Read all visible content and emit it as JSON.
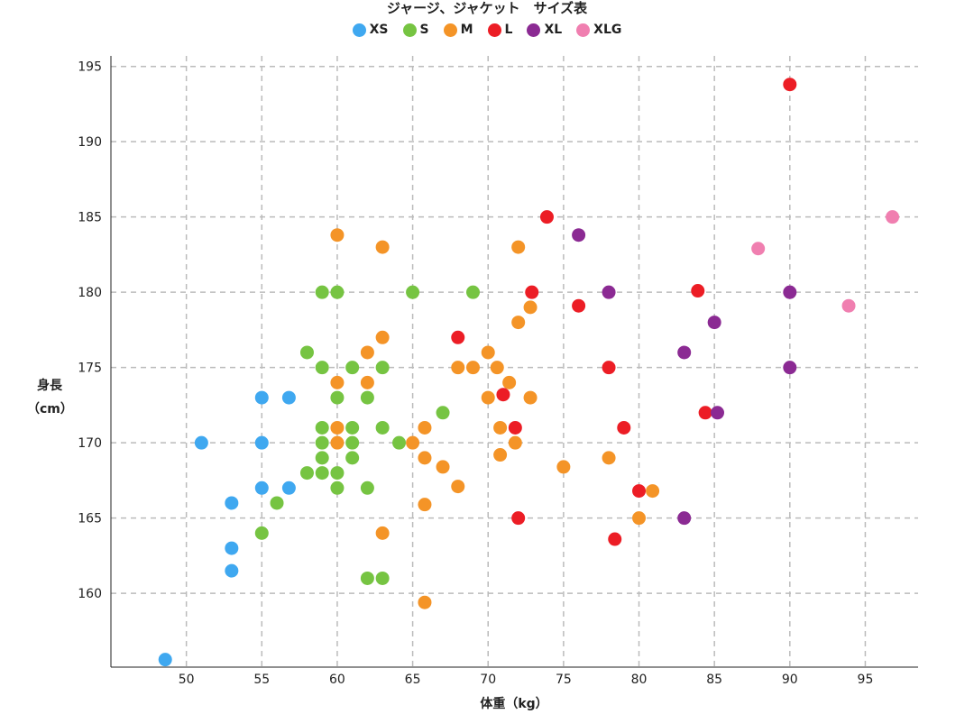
{
  "chart_data": {
    "type": "scatter",
    "title": "ジャージ、ジャケット　サイズ表",
    "xlabel": "体重（kg）",
    "ylabel": [
      "身長",
      "（cm）"
    ],
    "xlim": [
      45,
      98.5
    ],
    "ylim": [
      155.1,
      195.7
    ],
    "xticks": [
      50,
      55,
      60,
      65,
      70,
      75,
      80,
      85,
      90,
      95
    ],
    "yticks": [
      160,
      165,
      170,
      175,
      180,
      185,
      190,
      195
    ],
    "grid": true,
    "legend_position": "top-center",
    "series": [
      {
        "name": "XS",
        "color": "#3fa8f0",
        "points": [
          [
            48.6,
            155.6
          ],
          [
            51,
            170
          ],
          [
            53,
            166
          ],
          [
            53,
            163
          ],
          [
            53,
            161.5
          ],
          [
            55,
            173
          ],
          [
            55,
            170
          ],
          [
            55,
            167
          ],
          [
            56.8,
            173
          ],
          [
            56.8,
            167
          ]
        ]
      },
      {
        "name": "S",
        "color": "#76c442",
        "points": [
          [
            55,
            164
          ],
          [
            56,
            166
          ],
          [
            58,
            176
          ],
          [
            58,
            168
          ],
          [
            59,
            180
          ],
          [
            59,
            175
          ],
          [
            59,
            171
          ],
          [
            59,
            170
          ],
          [
            59,
            169
          ],
          [
            59,
            168
          ],
          [
            60,
            180
          ],
          [
            60,
            173
          ],
          [
            60,
            168
          ],
          [
            60,
            167
          ],
          [
            61,
            175
          ],
          [
            61,
            171
          ],
          [
            61,
            170
          ],
          [
            61,
            169
          ],
          [
            62,
            173
          ],
          [
            62,
            167
          ],
          [
            62,
            161
          ],
          [
            63,
            175
          ],
          [
            63,
            171
          ],
          [
            63,
            161
          ],
          [
            64.1,
            170
          ],
          [
            65,
            180
          ],
          [
            67,
            172
          ],
          [
            69,
            180
          ]
        ]
      },
      {
        "name": "M",
        "color": "#f49427",
        "points": [
          [
            60,
            183.8
          ],
          [
            60,
            174
          ],
          [
            60,
            171
          ],
          [
            60,
            170
          ],
          [
            62,
            176
          ],
          [
            62,
            174
          ],
          [
            63,
            183
          ],
          [
            63,
            177
          ],
          [
            63,
            164
          ],
          [
            65,
            170
          ],
          [
            65.8,
            171
          ],
          [
            65.8,
            169
          ],
          [
            65.8,
            165.9
          ],
          [
            65.8,
            159.4
          ],
          [
            67,
            168.4
          ],
          [
            68,
            175
          ],
          [
            68,
            167.1
          ],
          [
            69,
            175
          ],
          [
            70,
            176
          ],
          [
            70,
            173
          ],
          [
            70.6,
            175
          ],
          [
            70.8,
            171
          ],
          [
            70.8,
            169.2
          ],
          [
            71.4,
            174
          ],
          [
            71.8,
            170
          ],
          [
            72,
            178
          ],
          [
            72,
            183
          ],
          [
            72.8,
            173
          ],
          [
            72.8,
            179
          ],
          [
            75,
            168.4
          ],
          [
            78,
            169
          ],
          [
            80,
            165
          ],
          [
            80.9,
            166.8
          ]
        ]
      },
      {
        "name": "L",
        "color": "#ec1d25",
        "points": [
          [
            68,
            177
          ],
          [
            71,
            173.2
          ],
          [
            71.8,
            171
          ],
          [
            72,
            165
          ],
          [
            72.9,
            180
          ],
          [
            73.9,
            185
          ],
          [
            76,
            179.1
          ],
          [
            78,
            175
          ],
          [
            78.4,
            163.6
          ],
          [
            79,
            171
          ],
          [
            80,
            166.8
          ],
          [
            83.9,
            180.1
          ],
          [
            84.4,
            172
          ],
          [
            90,
            193.8
          ]
        ]
      },
      {
        "name": "XL",
        "color": "#8b2a93",
        "points": [
          [
            76,
            183.8
          ],
          [
            78,
            180
          ],
          [
            83,
            176
          ],
          [
            83,
            165
          ],
          [
            85,
            178
          ],
          [
            85.2,
            172
          ],
          [
            90,
            180
          ],
          [
            90,
            175
          ]
        ]
      },
      {
        "name": "XLG",
        "color": "#f07fb0",
        "points": [
          [
            87.9,
            182.9
          ],
          [
            93.9,
            179.1
          ],
          [
            96.8,
            185
          ]
        ]
      }
    ]
  }
}
